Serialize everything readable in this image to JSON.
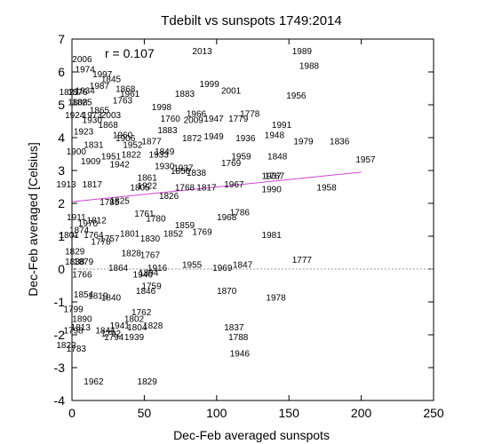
{
  "chart_data": {
    "type": "scatter",
    "title": "Tdebilt  vs sunspots 1749:2014",
    "xlabel": "Dec-Feb averaged sunspots",
    "ylabel": "Dec-Feb averaged  [Celsius]",
    "annotation": "r =  0.107",
    "xlim": [
      0,
      250
    ],
    "ylim": [
      -4,
      7
    ],
    "xticks": [
      "0",
      "50",
      "100",
      "150",
      "200",
      "250"
    ],
    "yticks": [
      "-4",
      "-3",
      "-2",
      "-1",
      "0",
      "1",
      "2",
      "3",
      "4",
      "5",
      "6",
      "7"
    ],
    "grid": false,
    "zero_line": {
      "y": 0,
      "style": "dotted",
      "color": "#999999"
    },
    "fit_line": {
      "x": [
        0,
        200
      ],
      "y": [
        2.05,
        2.95
      ],
      "color": "#cc44cc"
    },
    "points": [
      {
        "label": "2006",
        "x": 7,
        "y": 6.4
      },
      {
        "label": "2013",
        "x": 90,
        "y": 6.65
      },
      {
        "label": "1989",
        "x": 159,
        "y": 6.65
      },
      {
        "label": "1988",
        "x": 164,
        "y": 6.2
      },
      {
        "label": "1974",
        "x": 9,
        "y": 6.1
      },
      {
        "label": "1997",
        "x": 21,
        "y": 5.95
      },
      {
        "label": "1845",
        "x": 27,
        "y": 5.8
      },
      {
        "label": "1999",
        "x": 95,
        "y": 5.65
      },
      {
        "label": "1987",
        "x": 19,
        "y": 5.6
      },
      {
        "label": "1868",
        "x": 37,
        "y": 5.5
      },
      {
        "label": "2001",
        "x": 110,
        "y": 5.45
      },
      {
        "label": "1934",
        "x": 9,
        "y": 5.45
      },
      {
        "label": "1883",
        "x": 78,
        "y": 5.35
      },
      {
        "label": "1956",
        "x": 155,
        "y": 5.3
      },
      {
        "label": "1763",
        "x": 35,
        "y": 5.15
      },
      {
        "label": "1998",
        "x": 62,
        "y": 4.95
      },
      {
        "label": "1865",
        "x": 19,
        "y": 4.85
      },
      {
        "label": "1924",
        "x": 2,
        "y": 4.7
      },
      {
        "label": "1973",
        "x": 14,
        "y": 4.7
      },
      {
        "label": "2003",
        "x": 27,
        "y": 4.7
      },
      {
        "label": "1760",
        "x": 68,
        "y": 4.6
      },
      {
        "label": "1966",
        "x": 86,
        "y": 4.75
      },
      {
        "label": "1947",
        "x": 98,
        "y": 4.6
      },
      {
        "label": "1778",
        "x": 123,
        "y": 4.75
      },
      {
        "label": "1779",
        "x": 115,
        "y": 4.6
      },
      {
        "label": "2009",
        "x": 84,
        "y": 4.55
      },
      {
        "label": "1991",
        "x": 145,
        "y": 4.4
      },
      {
        "label": "1948",
        "x": 140,
        "y": 4.1
      },
      {
        "label": "1936",
        "x": 120,
        "y": 4.0
      },
      {
        "label": "1979",
        "x": 160,
        "y": 3.9
      },
      {
        "label": "1836",
        "x": 185,
        "y": 3.9
      },
      {
        "label": "1949",
        "x": 98,
        "y": 4.05
      },
      {
        "label": "1957",
        "x": 203,
        "y": 3.35
      },
      {
        "label": "1848",
        "x": 142,
        "y": 3.45
      },
      {
        "label": "1959",
        "x": 117,
        "y": 3.45
      },
      {
        "label": "1769",
        "x": 110,
        "y": 3.25
      },
      {
        "label": "1937",
        "x": 77,
        "y": 3.1
      },
      {
        "label": "1838",
        "x": 86,
        "y": 2.95
      },
      {
        "label": "1967",
        "x": 112,
        "y": 2.6
      },
      {
        "label": "1937",
        "x": 138,
        "y": 2.85
      },
      {
        "label": "1767",
        "x": 140,
        "y": 2.85
      },
      {
        "label": "1990",
        "x": 138,
        "y": 2.45
      },
      {
        "label": "1958",
        "x": 176,
        "y": 2.5
      },
      {
        "label": "1768",
        "x": 78,
        "y": 2.5
      },
      {
        "label": "1817",
        "x": 93,
        "y": 2.5
      },
      {
        "label": "1786",
        "x": 116,
        "y": 1.75
      },
      {
        "label": "1968",
        "x": 107,
        "y": 1.6
      },
      {
        "label": "1859",
        "x": 78,
        "y": 1.35
      },
      {
        "label": "1769",
        "x": 90,
        "y": 1.15
      },
      {
        "label": "1852",
        "x": 70,
        "y": 1.1
      },
      {
        "label": "1981",
        "x": 138,
        "y": 1.05
      },
      {
        "label": "1761",
        "x": 50,
        "y": 1.7
      },
      {
        "label": "1780",
        "x": 58,
        "y": 1.55
      },
      {
        "label": "1801",
        "x": 40,
        "y": 1.1
      },
      {
        "label": "1830",
        "x": 54,
        "y": 0.95
      },
      {
        "label": "1829",
        "x": 2,
        "y": 0.55
      },
      {
        "label": "1828",
        "x": 41,
        "y": 0.5
      },
      {
        "label": "1767",
        "x": 54,
        "y": 0.45
      },
      {
        "label": "1777",
        "x": 159,
        "y": 0.3
      },
      {
        "label": "1955",
        "x": 83,
        "y": 0.15
      },
      {
        "label": "1969",
        "x": 104,
        "y": 0.05
      },
      {
        "label": "1847",
        "x": 118,
        "y": 0.15
      },
      {
        "label": "1916",
        "x": 59,
        "y": 0.05
      },
      {
        "label": "1864",
        "x": 32,
        "y": 0.05
      },
      {
        "label": "1894",
        "x": 53,
        "y": -0.1
      },
      {
        "label": "1940",
        "x": 49,
        "y": -0.15
      },
      {
        "label": "1766",
        "x": 7,
        "y": -0.15
      },
      {
        "label": "1759",
        "x": 55,
        "y": -0.5
      },
      {
        "label": "1846",
        "x": 51,
        "y": -0.65
      },
      {
        "label": "1870",
        "x": 107,
        "y": -0.65
      },
      {
        "label": "1978",
        "x": 141,
        "y": -0.85
      },
      {
        "label": "1854",
        "x": 8,
        "y": -0.75
      },
      {
        "label": "1819",
        "x": 18,
        "y": -0.8
      },
      {
        "label": "1840",
        "x": 27,
        "y": -0.85
      },
      {
        "label": "1799",
        "x": 1,
        "y": -1.2
      },
      {
        "label": "1762",
        "x": 48,
        "y": -1.3
      },
      {
        "label": "1802",
        "x": 43,
        "y": -1.5
      },
      {
        "label": "1890",
        "x": 7,
        "y": -1.5
      },
      {
        "label": "1828",
        "x": 56,
        "y": -1.7
      },
      {
        "label": "1941",
        "x": 33,
        "y": -1.7
      },
      {
        "label": "1804",
        "x": 45,
        "y": -1.75
      },
      {
        "label": "1837",
        "x": 112,
        "y": -1.75
      },
      {
        "label": "1813",
        "x": 6,
        "y": -1.75
      },
      {
        "label": "1798",
        "x": 1,
        "y": -1.85
      },
      {
        "label": "1844",
        "x": 23,
        "y": -1.85
      },
      {
        "label": "1792",
        "x": 27,
        "y": -1.95
      },
      {
        "label": "1794",
        "x": 29,
        "y": -2.05
      },
      {
        "label": "1939",
        "x": 43,
        "y": -2.05
      },
      {
        "label": "1788",
        "x": 115,
        "y": -2.05
      },
      {
        "label": "1822",
        "x": -4,
        "y": -2.3
      },
      {
        "label": "1783",
        "x": 3,
        "y": -2.4
      },
      {
        "label": "1946",
        "x": 116,
        "y": -2.55
      },
      {
        "label": "1962",
        "x": 15,
        "y": -3.4
      },
      {
        "label": "1829",
        "x": 52,
        "y": -3.4
      },
      {
        "label": "1821",
        "x": -2,
        "y": 5.4
      },
      {
        "label": "1876",
        "x": 4,
        "y": 5.4
      },
      {
        "label": "1808",
        "x": 4,
        "y": 5.1
      },
      {
        "label": "1825",
        "x": 7,
        "y": 5.1
      },
      {
        "label": "1930",
        "x": 14,
        "y": 4.55
      },
      {
        "label": "1868",
        "x": 25,
        "y": 4.4
      },
      {
        "label": "1906",
        "x": 37,
        "y": 4.0
      },
      {
        "label": "1951",
        "x": 27,
        "y": 3.45
      },
      {
        "label": "1822",
        "x": 41,
        "y": 3.5
      },
      {
        "label": "1933",
        "x": 60,
        "y": 3.5
      },
      {
        "label": "1849",
        "x": 64,
        "y": 3.6
      },
      {
        "label": "1877",
        "x": 55,
        "y": 3.9
      },
      {
        "label": "1872",
        "x": 83,
        "y": 4.0
      },
      {
        "label": "1883",
        "x": 66,
        "y": 4.25
      },
      {
        "label": "1942",
        "x": 33,
        "y": 3.2
      },
      {
        "label": "1861",
        "x": 52,
        "y": 2.8
      },
      {
        "label": "1922",
        "x": 52,
        "y": 2.55
      },
      {
        "label": "1805",
        "x": 47,
        "y": 2.5
      },
      {
        "label": "1913",
        "x": -4,
        "y": 2.6
      },
      {
        "label": "1817",
        "x": 14,
        "y": 2.6
      },
      {
        "label": "1874",
        "x": 5,
        "y": 1.2
      },
      {
        "label": "1801",
        "x": -2,
        "y": 1.05
      },
      {
        "label": "1764",
        "x": 15,
        "y": 1.05
      },
      {
        "label": "1757",
        "x": 26,
        "y": 0.95
      },
      {
        "label": "1778",
        "x": 20,
        "y": 0.85
      },
      {
        "label": "1838",
        "x": 2,
        "y": 0.25
      },
      {
        "label": "1879",
        "x": 8,
        "y": 0.25
      },
      {
        "label": "1960",
        "x": 35,
        "y": 4.1
      },
      {
        "label": "1961",
        "x": 40,
        "y": 5.35
      },
      {
        "label": "1952",
        "x": 42,
        "y": 3.8
      },
      {
        "label": "1825",
        "x": 33,
        "y": 2.1
      },
      {
        "label": "1911",
        "x": 3,
        "y": 1.6
      },
      {
        "label": "1970",
        "x": 11,
        "y": 1.4
      },
      {
        "label": "1812",
        "x": 17,
        "y": 1.5
      },
      {
        "label": "1785",
        "x": 26,
        "y": 2.05
      },
      {
        "label": "1831",
        "x": 15,
        "y": 3.8
      },
      {
        "label": "1923",
        "x": 8,
        "y": 4.2
      },
      {
        "label": "1900",
        "x": 3,
        "y": 3.6
      },
      {
        "label": "1909",
        "x": 13,
        "y": 3.3
      },
      {
        "label": "1826",
        "x": 67,
        "y": 2.25
      },
      {
        "label": "1930",
        "x": 64,
        "y": 3.15
      },
      {
        "label": "1850",
        "x": 75,
        "y": 3.0
      }
    ]
  }
}
